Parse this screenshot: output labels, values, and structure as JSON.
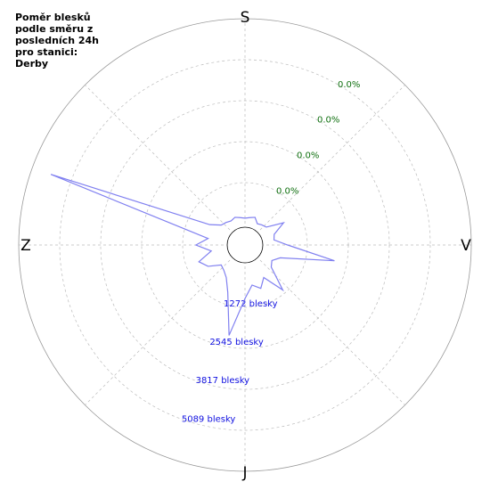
{
  "chart_data": {
    "type": "polar",
    "title": "Poměr blesků podle směru z posledních 24h pro stanici: Derby",
    "direction_labels": [
      "S",
      "V",
      "J",
      "Z"
    ],
    "theta": [
      0,
      10,
      20,
      30,
      40,
      50,
      60,
      70,
      80,
      90,
      100,
      110,
      120,
      130,
      140,
      150,
      160,
      170,
      180,
      190,
      200,
      210,
      220,
      230,
      240,
      250,
      260,
      270,
      280,
      290,
      300,
      310,
      320,
      330,
      340,
      350
    ],
    "values": [
      170,
      200,
      250,
      100,
      150,
      200,
      720,
      300,
      250,
      660,
      2157,
      500,
      300,
      400,
      1160,
      500,
      770,
      600,
      1000,
      2185,
      900,
      500,
      360,
      300,
      660,
      860,
      400,
      860,
      500,
      5750,
      600,
      300,
      250,
      200,
      250,
      200
    ],
    "color": "#8080f0",
    "rlim": [
      0,
      6361
    ],
    "rticks": [
      {
        "value": 1272,
        "label": "1272 blesky"
      },
      {
        "value": 2545,
        "label": "2545 blesky"
      },
      {
        "value": 3817,
        "label": "3817 blesky"
      },
      {
        "value": 5089,
        "label": "5089 blesky"
      }
    ],
    "percent_labels": [
      "0.0%",
      "0.0%",
      "0.0%",
      "0.0%"
    ],
    "grid": true
  }
}
